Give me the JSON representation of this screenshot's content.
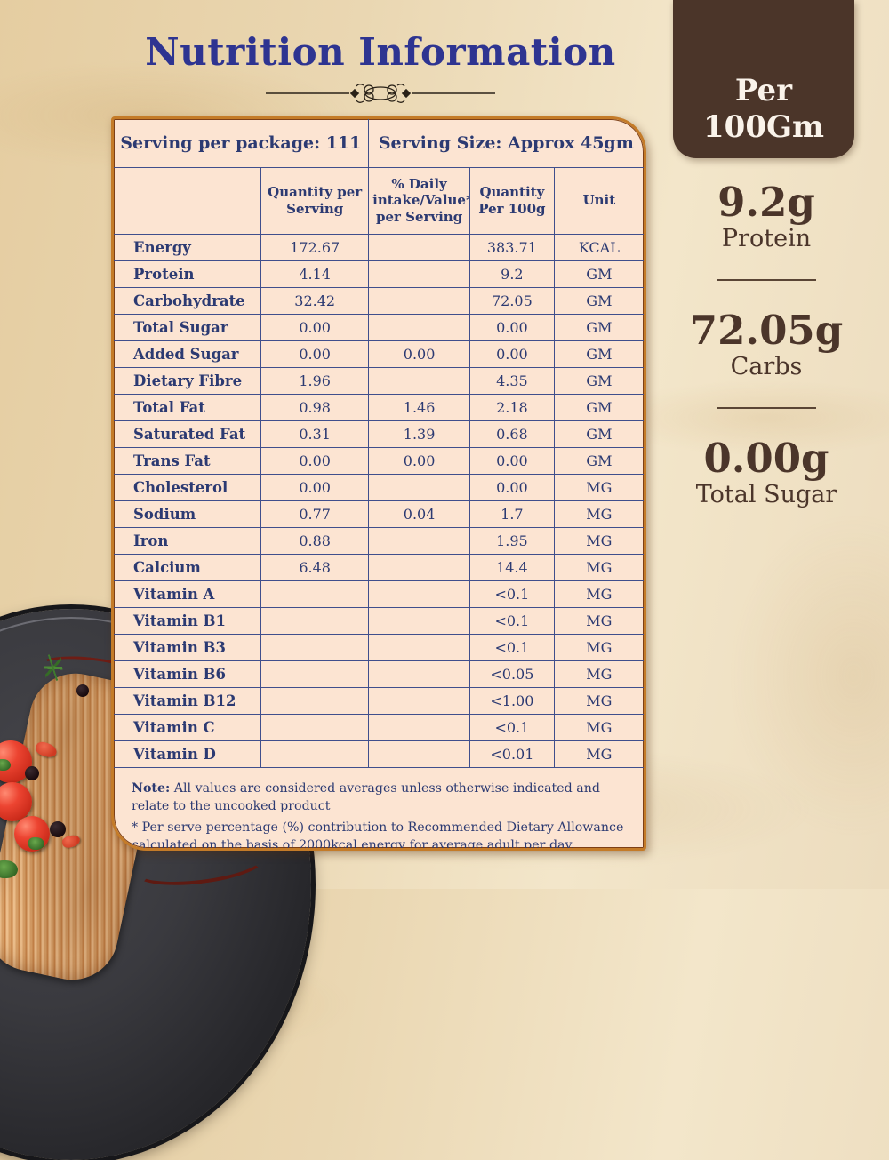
{
  "page": {
    "title": "Nutrition Information"
  },
  "per_100gm_box": {
    "line1": "Per",
    "line2": "100Gm"
  },
  "highlights": [
    {
      "value": "9.2g",
      "label": "Protein"
    },
    {
      "value": "72.05g",
      "label": "Carbs"
    },
    {
      "value": "0.00g",
      "label": "Total Sugar"
    }
  ],
  "table": {
    "serving_per_package": "Serving per package: 111",
    "serving_size": "Serving Size: Approx 45gm",
    "columns": [
      "",
      "Quantity per Serving",
      "% Daily intake/Value* per Serving",
      "Quantity Per 100g",
      "Unit"
    ],
    "rows": [
      [
        "Energy",
        "172.67",
        "",
        "383.71",
        "KCAL"
      ],
      [
        "Protein",
        "4.14",
        "",
        "9.2",
        "GM"
      ],
      [
        "Carbohydrate",
        "32.42",
        "",
        "72.05",
        "GM"
      ],
      [
        "Total Sugar",
        "0.00",
        "",
        "0.00",
        "GM"
      ],
      [
        "Added Sugar",
        "0.00",
        "0.00",
        "0.00",
        "GM"
      ],
      [
        "Dietary Fibre",
        "1.96",
        "",
        "4.35",
        "GM"
      ],
      [
        "Total Fat",
        "0.98",
        "1.46",
        "2.18",
        "GM"
      ],
      [
        "Saturated Fat",
        "0.31",
        "1.39",
        "0.68",
        "GM"
      ],
      [
        "Trans Fat",
        "0.00",
        "0.00",
        "0.00",
        "GM"
      ],
      [
        "Cholesterol",
        "0.00",
        "",
        "0.00",
        "MG"
      ],
      [
        "Sodium",
        "0.77",
        "0.04",
        "1.7",
        "MG"
      ],
      [
        "Iron",
        "0.88",
        "",
        "1.95",
        "MG"
      ],
      [
        "Calcium",
        "6.48",
        "",
        "14.4",
        "MG"
      ],
      [
        "Vitamin A",
        "",
        "",
        "<0.1",
        "MG"
      ],
      [
        "Vitamin B1",
        "",
        "",
        "<0.1",
        "MG"
      ],
      [
        "Vitamin B3",
        "",
        "",
        "<0.1",
        "MG"
      ],
      [
        "Vitamin B6",
        "",
        "",
        "<0.05",
        "MG"
      ],
      [
        "Vitamin B12",
        "",
        "",
        "<1.00",
        "MG"
      ],
      [
        "Vitamin C",
        "",
        "",
        "<0.1",
        "MG"
      ],
      [
        "Vitamin D",
        "",
        "",
        "<0.01",
        "MG"
      ]
    ],
    "note_label": "Note:",
    "note_body": " All values are considered averages unless otherwise indicated and relate to the uncooked product",
    "note_footnote": "* Per serve percentage (%) contribution to Recommended Dietary Allowance calculated on the basis of 2000kcal energy for average adult per day."
  },
  "colors": {
    "title_blue": "#2e3491",
    "table_navy": "#3f4e8c",
    "card_peach": "#fce4d2",
    "card_border_orange": "#c47b28",
    "dark_brown_box": "#4b3529",
    "stat_brown": "#4b352a",
    "marble_tan": "#ead7b2"
  }
}
